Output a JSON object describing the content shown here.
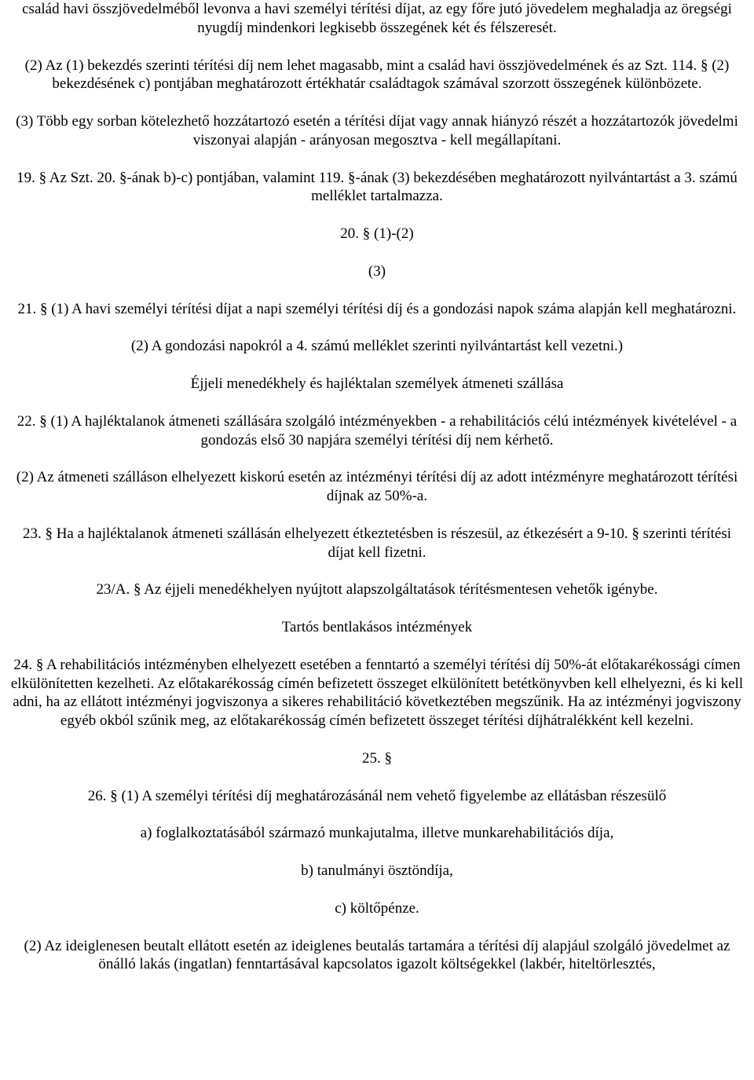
{
  "p1": "család havi összjövedelméből levonva a havi személyi térítési díjat, az egy főre jutó jövedelem meghaladja az öregségi nyugdíj mindenkori legkisebb összegének két és félszeresét.",
  "p2": "(2) Az (1) bekezdés szerinti térítési díj nem lehet magasabb, mint a család havi összjövedelmének és az Szt. 114. § (2) bekezdésének c) pontjában meghatározott értékhatár családtagok számával szorzott összegének különbözete.",
  "p3": "(3) Több egy sorban kötelezhető hozzátartozó esetén a térítési díjat vagy annak hiányzó részét a hozzátartozók jövedelmi viszonyai alapján - arányosan megosztva - kell megállapítani.",
  "p4": "19. § Az Szt. 20. §-ának b)-c) pontjában, valamint 119. §-ának (3) bekezdésében meghatározott nyilvántartást a 3. számú melléklet tartalmazza.",
  "s20": "20. § (1)-(2)",
  "s3": "(3)",
  "p21": "21. § (1) A havi személyi térítési díjat a napi személyi térítési díj és a gondozási napok száma alapján kell meghatározni.",
  "p21b": "(2) A gondozási napokról a 4. számú melléklet szerinti nyilvántartást kell vezetni.)",
  "h_ejjeli": "Éjjeli menedékhely és hajléktalan személyek átmeneti szállása",
  "p22": "22. § (1) A hajléktalanok átmeneti szállására szolgáló intézményekben - a rehabilitációs célú intézmények kivételével - a gondozás első 30 napjára személyi térítési díj nem kérhető.",
  "p22b": "(2) Az átmeneti szálláson elhelyezett kiskorú esetén az intézményi térítési díj az adott intézményre meghatározott térítési díjnak az 50%-a.",
  "p23": "23. § Ha a hajléktalanok átmeneti szállásán elhelyezett étkeztetésben is részesül, az étkezésért a 9-10. § szerinti térítési díjat kell fizetni.",
  "p23a": "23/A. § Az éjjeli menedékhelyen nyújtott alapszolgáltatások térítésmentesen vehetők igénybe.",
  "h_tartos": "Tartós bentlakásos intézmények",
  "p24": "24. § A rehabilitációs intézményben elhelyezett esetében a fenntartó a személyi térítési díj 50%-át előtakarékossági címen elkülönítetten kezelheti. Az előtakarékosság címén befizetett összeget elkülönített betétkönyvben kell elhelyezni, és ki kell adni, ha az ellátott intézményi jogviszonya a sikeres rehabilitáció következtében megszűnik. Ha az intézményi jogviszony egyéb okból szűnik meg, az előtakarékosság címén befizetett összeget térítési díjhátralékként kell kezelni.",
  "s25": "25. §",
  "p26": "26. § (1) A személyi térítési díj meghatározásánál nem vehető figyelembe az ellátásban részesülő",
  "p26a": "a) foglalkoztatásából származó munkajutalma, illetve munkarehabilitációs díja,",
  "p26b": "b) tanulmányi ösztöndíja,",
  "p26c": "c) költőpénze.",
  "p26_2": "(2) Az ideiglenesen beutalt ellátott esetén az ideiglenes beutalás tartamára a térítési díj alapjául szolgáló jövedelmet az önálló lakás (ingatlan) fenntartásával kapcsolatos igazolt költségekkel (lakbér, hiteltörlesztés,"
}
